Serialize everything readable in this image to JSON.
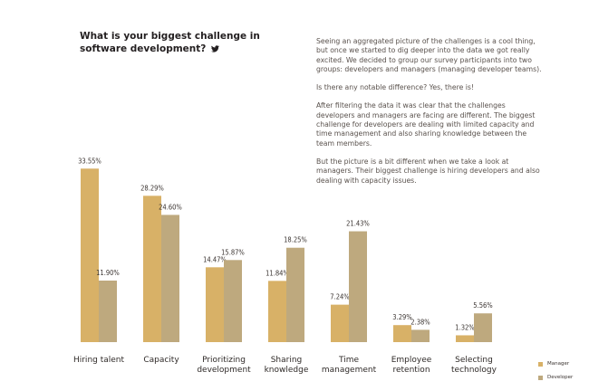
{
  "title": "What is your biggest challenge in software development?",
  "paragraphs": [
    "Seeing an aggregated picture of the challenges is a cool thing, but once we started to dig deeper into the data we got really excited. We decided to group our survey participants into two groups: developers and managers (managing developer teams).",
    "Is there any notable difference? Yes, there is!",
    "After filtering the data it was clear that the challenges developers and managers are facing are different. The biggest challenge for developers are dealing with limited capacity and time management and also sharing knowledge between the team members.",
    "But the picture is a bit different when we take a look at managers. Their biggest challenge is hiring developers and also dealing with capacity issues."
  ],
  "icons": {
    "title_icon": "twitter-icon"
  },
  "chart_data": {
    "type": "bar",
    "title": "What is your biggest challenge in software development?",
    "categories": [
      "Hiring talent",
      "Capacity",
      "Prioritizing\ndevelopment",
      "Sharing\nknowledge",
      "Time\nmanagement",
      "Employee\nretention",
      "Selecting\ntechnology"
    ],
    "series": [
      {
        "name": "Manager",
        "color": "#d8b167",
        "values": [
          33.55,
          28.29,
          14.47,
          11.84,
          7.24,
          3.29,
          1.32
        ],
        "labels": [
          "33.55%",
          "28.29%",
          "14.47%",
          "11.84%",
          "7.24%",
          "3.29%",
          "1.32%"
        ]
      },
      {
        "name": "Developer",
        "color": "#bea97e",
        "values": [
          11.9,
          24.6,
          15.87,
          18.25,
          21.43,
          2.38,
          5.56
        ],
        "labels": [
          "11.90%",
          "24.60%",
          "15.87%",
          "18.25%",
          "21.43%",
          "2.38%",
          "5.56%"
        ]
      }
    ],
    "ylim": [
      0,
      35
    ],
    "grid": false,
    "legend": "bottom-right"
  }
}
